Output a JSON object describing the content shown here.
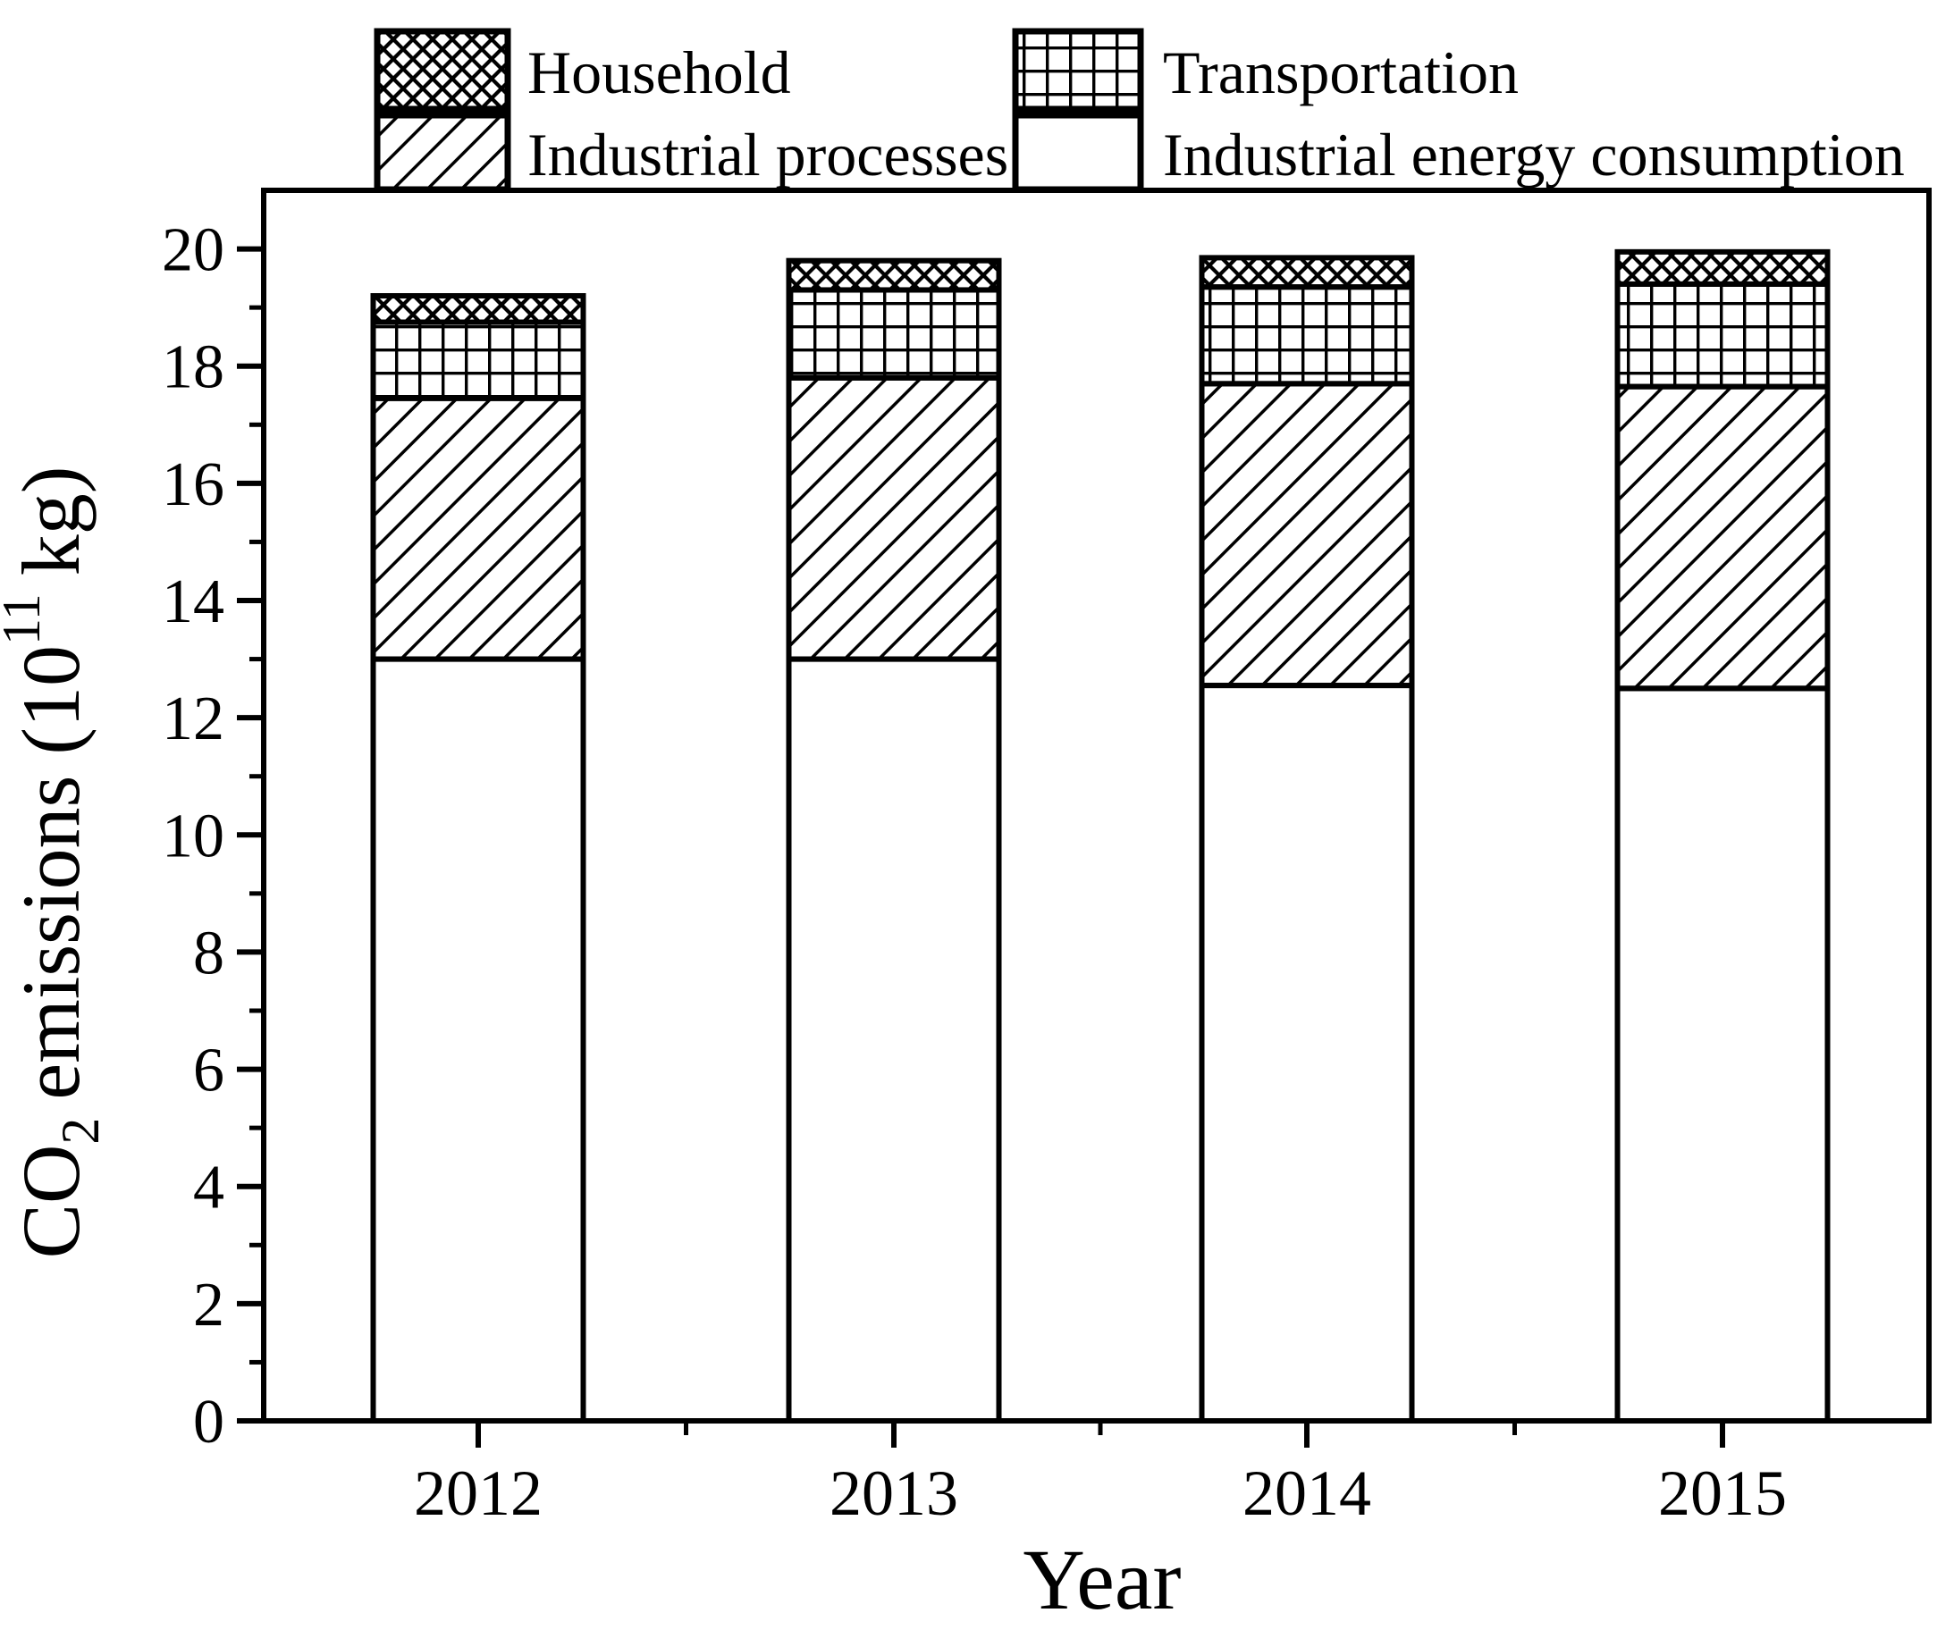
{
  "legend": {
    "items": [
      {
        "label": "Household",
        "pattern": "crosshatch"
      },
      {
        "label": "Transportation",
        "pattern": "grid"
      },
      {
        "label": "Industrial processes",
        "pattern": "diagonal"
      },
      {
        "label": "Industrial energy consumption",
        "pattern": "plain"
      }
    ]
  },
  "axes": {
    "x_title": "Year",
    "y_title": {
      "pre": "CO",
      "sub": "2",
      "mid": "emissions (10",
      "sup": "11",
      "post": "kg)"
    },
    "y_tick_labels": [
      0,
      2,
      4,
      6,
      8,
      10,
      12,
      14,
      16,
      18,
      20
    ],
    "y_minor_ticks": [
      1,
      3,
      5,
      7,
      9,
      11,
      13,
      15,
      17,
      19
    ],
    "x_tick_labels": [
      "2012",
      "2013",
      "2014",
      "2015"
    ]
  },
  "chart_data": {
    "type": "bar",
    "stacked": true,
    "categories": [
      "2012",
      "2013",
      "2014",
      "2015"
    ],
    "series": [
      {
        "name": "Industrial energy consumption",
        "pattern": "plain",
        "values": [
          13.0,
          13.0,
          12.55,
          12.5
        ]
      },
      {
        "name": "Industrial processes",
        "pattern": "diagonal",
        "values": [
          4.45,
          4.8,
          5.15,
          5.15
        ]
      },
      {
        "name": "Transportation",
        "pattern": "grid",
        "values": [
          1.3,
          1.5,
          1.65,
          1.75
        ]
      },
      {
        "name": "Household",
        "pattern": "crosshatch",
        "values": [
          0.45,
          0.5,
          0.5,
          0.55
        ]
      }
    ],
    "totals": [
      19.2,
      19.8,
      19.85,
      19.95
    ],
    "title": "",
    "xlabel": "Year",
    "ylabel": "CO₂ emissions (10¹¹ kg)",
    "ylim": [
      0,
      21
    ],
    "grid": false,
    "legend_position": "top",
    "colors": {
      "foreground": "#000000",
      "background": "#ffffff"
    }
  }
}
